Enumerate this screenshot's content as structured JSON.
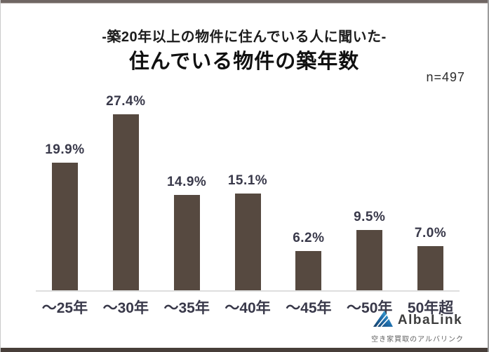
{
  "header": {
    "subtitle": "-築20年以上の物件に住んでいる人に聞いた-",
    "title": "住んでいる物件の築年数",
    "sample_size": "n=497"
  },
  "chart_data": {
    "type": "bar",
    "title": "住んでいる物件の築年数",
    "subtitle": "-築20年以上の物件に住んでいる人に聞いた-",
    "sample_size": "n=497",
    "categories": [
      "～25年",
      "～30年",
      "～35年",
      "～40年",
      "～45年",
      "～50年",
      "50年超"
    ],
    "values": [
      19.9,
      27.4,
      14.9,
      15.1,
      6.2,
      9.5,
      7.0
    ],
    "value_labels": [
      "19.9%",
      "27.4%",
      "14.9%",
      "15.1%",
      "6.2%",
      "9.5%",
      "7.0%"
    ],
    "xlabel": "",
    "ylabel": "",
    "ylim": [
      0,
      30
    ],
    "grid": false,
    "legend": false,
    "bar_color": "#564940",
    "label_color": "#39394a",
    "axis_line_color": "#dedede"
  },
  "footer": {
    "logo_text": "AlbaLink",
    "logo_tagline": "空き家買取のアルバリンク",
    "logo_colors": {
      "dark_blue": "#173e66",
      "mid_blue": "#1f6fae",
      "light_blue": "#4fc3e8"
    }
  }
}
